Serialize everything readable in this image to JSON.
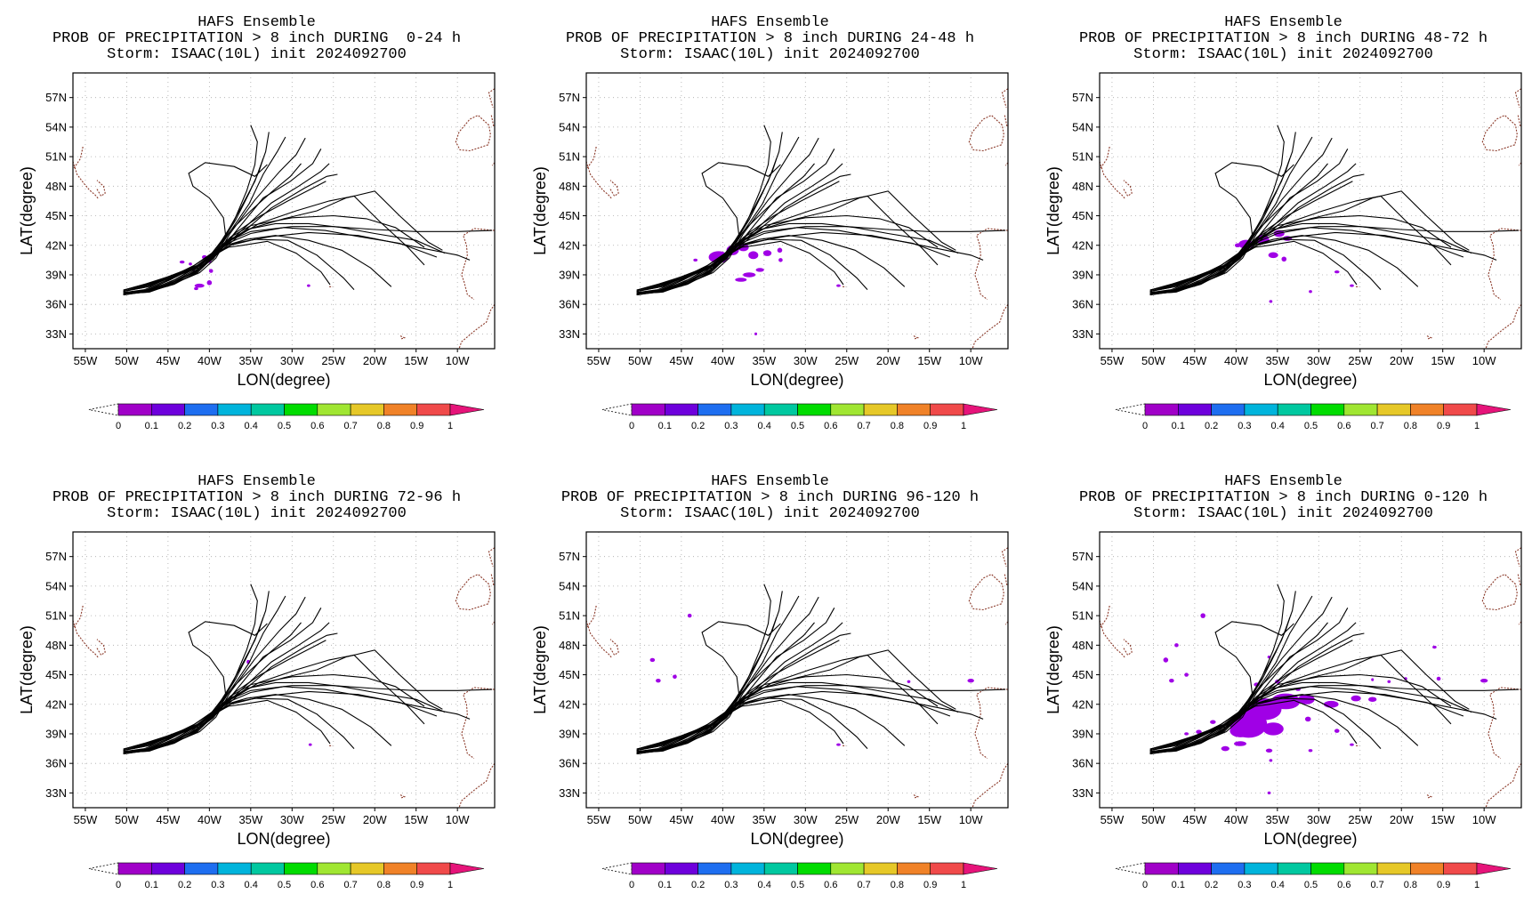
{
  "figure": {
    "panels": [
      {
        "title_line1": "HAFS Ensemble",
        "title_line2": "PROB OF PRECIPITATION > 8 inch DURING  0-24 h",
        "title_line3": "Storm: ISAAC(10L) init 2024092700",
        "period": "0-24 h"
      },
      {
        "title_line1": "HAFS Ensemble",
        "title_line2": "PROB OF PRECIPITATION > 8 inch DURING 24-48 h",
        "title_line3": "Storm: ISAAC(10L) init 2024092700",
        "period": "24-48 h"
      },
      {
        "title_line1": "HAFS Ensemble",
        "title_line2": "PROB OF PRECIPITATION > 8 inch DURING 48-72 h",
        "title_line3": "Storm: ISAAC(10L) init 2024092700",
        "period": "48-72 h"
      },
      {
        "title_line1": "HAFS Ensemble",
        "title_line2": "PROB OF PRECIPITATION > 8 inch DURING 72-96 h",
        "title_line3": "Storm: ISAAC(10L) init 2024092700",
        "period": "72-96 h"
      },
      {
        "title_line1": "HAFS Ensemble",
        "title_line2": "PROB OF PRECIPITATION > 8 inch DURING 96-120 h",
        "title_line3": "Storm: ISAAC(10L) init 2024092700",
        "period": "96-120 h"
      },
      {
        "title_line1": "HAFS Ensemble",
        "title_line2": "PROB OF PRECIPITATION > 8 inch DURING 0-120 h",
        "title_line3": "Storm: ISAAC(10L) init 2024092700",
        "period": "0-120 h"
      }
    ],
    "xlabel": "LON(degree)",
    "ylabel": "LAT(degree)",
    "lon_ticks": [
      "55W",
      "50W",
      "45W",
      "40W",
      "35W",
      "30W",
      "25W",
      "20W",
      "15W",
      "10W"
    ],
    "lat_ticks": [
      "57N",
      "54N",
      "51N",
      "48N",
      "45N",
      "42N",
      "39N",
      "36N",
      "33N"
    ],
    "colorbar": {
      "labels": [
        "0",
        "0.1",
        "0.2",
        "0.3",
        "0.4",
        "0.5",
        "0.6",
        "0.7",
        "0.8",
        "0.9",
        "1"
      ],
      "colors": [
        "#a000c8",
        "#6e00dc",
        "#1e6ef0",
        "#00b4dc",
        "#00c8a0",
        "#00dc00",
        "#a0e632",
        "#e6c828",
        "#f08228",
        "#f04a4a"
      ],
      "over_color": "#e6147a"
    },
    "colors": {
      "track": "#000000",
      "coast": "#8b3a2a",
      "grid": "#aaaaaa",
      "prob_shading": "#a000e6"
    }
  }
}
